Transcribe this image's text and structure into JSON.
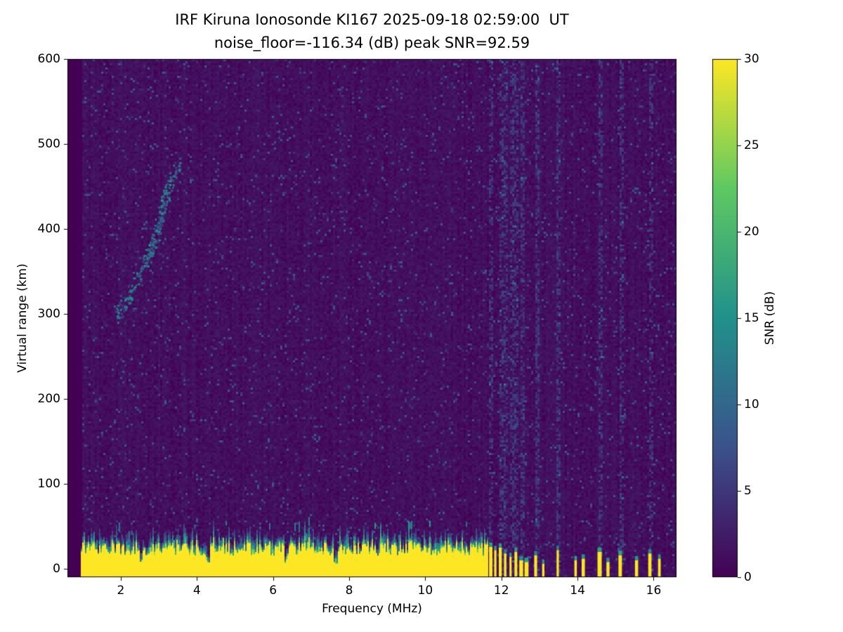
{
  "chart_data": {
    "type": "heatmap",
    "title": "IRF Kiruna Ionosonde KI167 2025-09-18 02:59:00  UT",
    "subtitle": "noise_floor=-116.34 (dB) peak SNR=92.59",
    "xlabel": "Frequency (MHz)",
    "ylabel": "Virtual range (km)",
    "colorbar_label": "SNR (dB)",
    "x_range_mhz": [
      0.6,
      16.6
    ],
    "y_range_km": [
      -10,
      600
    ],
    "snr_range_db": [
      0,
      30
    ],
    "xticks": [
      2,
      4,
      6,
      8,
      10,
      12,
      14,
      16
    ],
    "yticks": [
      0,
      100,
      200,
      300,
      400,
      500,
      600
    ],
    "colorbar_ticks": [
      0,
      5,
      10,
      15,
      20,
      25,
      30
    ],
    "grid": false,
    "colormap": {
      "name": "viridis",
      "anchors": [
        "#440154",
        "#3b528b",
        "#21918c",
        "#5ec962",
        "#fde725"
      ]
    },
    "background_noise": {
      "speckle_probability": 0.055,
      "speckle_snr_max_db": 9,
      "base_snr_max_db": 1.8
    },
    "ground_band": {
      "freq_start_mhz": 0.95,
      "freq_end_mhz": 11.65,
      "mean_top_km": 24,
      "fringe_km": 14,
      "notch_freqs_mhz": [
        2.52,
        4.28,
        6.32,
        7.62
      ]
    },
    "rf_columns": [
      {
        "f": 11.72,
        "h": 26
      },
      {
        "f": 11.84,
        "h": 22
      },
      {
        "f": 11.97,
        "h": 25
      },
      {
        "f": 12.1,
        "h": 18
      },
      {
        "f": 12.24,
        "h": 14
      },
      {
        "f": 12.38,
        "h": 20
      },
      {
        "f": 12.52,
        "h": 10
      },
      {
        "f": 12.66,
        "h": 8
      },
      {
        "f": 12.9,
        "h": 16
      },
      {
        "f": 13.1,
        "h": 6
      },
      {
        "f": 13.48,
        "h": 22
      },
      {
        "f": 13.95,
        "h": 10
      },
      {
        "f": 14.15,
        "h": 12
      },
      {
        "f": 14.58,
        "h": 20
      },
      {
        "f": 14.8,
        "h": 8
      },
      {
        "f": 15.12,
        "h": 16
      },
      {
        "f": 15.55,
        "h": 10
      },
      {
        "f": 15.9,
        "h": 18
      },
      {
        "f": 16.15,
        "h": 12
      }
    ],
    "interference_stripe_freqs_mhz": [
      11.72,
      11.97,
      12.1,
      12.24,
      12.38,
      12.52,
      12.9,
      13.48,
      14.58,
      15.12,
      15.9
    ],
    "echo_trace": {
      "points_mhz_km": [
        [
          1.85,
          300
        ],
        [
          2.0,
          306
        ],
        [
          2.15,
          318
        ],
        [
          2.3,
          332
        ],
        [
          2.5,
          348
        ],
        [
          2.65,
          362
        ],
        [
          2.8,
          378
        ],
        [
          2.9,
          392
        ],
        [
          3.0,
          408
        ],
        [
          3.1,
          428
        ],
        [
          3.2,
          446
        ],
        [
          3.35,
          462
        ],
        [
          3.5,
          478
        ]
      ],
      "peak_snr_db": 16
    }
  }
}
